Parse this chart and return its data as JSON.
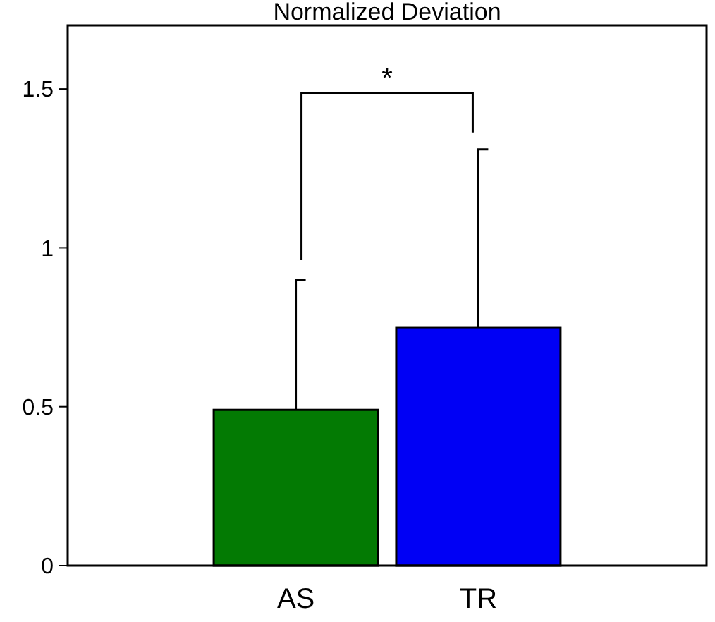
{
  "chart_data": {
    "type": "bar",
    "title": "Normalized Deviation",
    "categories": [
      "AS",
      "TR"
    ],
    "values": [
      0.49,
      0.75
    ],
    "colors": [
      "#037a03",
      "#0000f5"
    ],
    "errors": [
      0.41,
      0.56
    ],
    "ylim": [
      0,
      1.7
    ],
    "yticks": [
      0,
      0.5,
      1,
      1.5
    ],
    "grid": false,
    "annotations": [
      "*"
    ]
  }
}
